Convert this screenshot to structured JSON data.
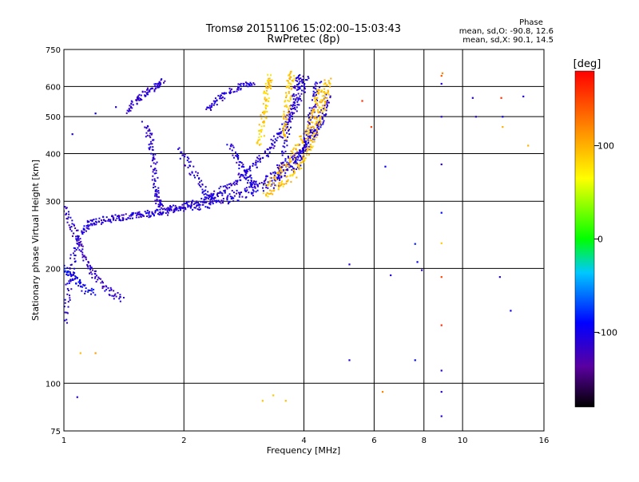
{
  "title_line1": "Tromsø 20151106 15:02:00–15:03:43",
  "title_line2": "RwPretec (8p)",
  "phase_box": {
    "heading": "Phase",
    "line_o": "mean, sd,O: -90.8, 12.6",
    "line_x": "mean, sd,X:  90.1, 14.5"
  },
  "colorbar": {
    "label": "[deg]",
    "min": -180,
    "max": 180,
    "tick_values": [
      100,
      0,
      -100
    ],
    "tick_labels": [
      "100",
      "0",
      "-100"
    ]
  },
  "chart_data": {
    "type": "scatter",
    "title": "Tromsø 20151106 15:02:00–15:03:43",
    "subtitle": "RwPretec (8p)",
    "xlabel": "Frequency [MHz]",
    "ylabel": "Stationary phase Virtual Height [km]",
    "x_scale": "log",
    "y_scale": "log",
    "xlim": [
      1,
      16
    ],
    "ylim": [
      75,
      750
    ],
    "x_ticks": [
      1,
      2,
      4,
      6,
      8,
      10,
      16
    ],
    "x_tick_labels": [
      "1",
      "2",
      "4",
      "6",
      "8",
      "10",
      "16"
    ],
    "y_ticks": [
      75,
      100,
      200,
      300,
      400,
      500,
      600,
      750
    ],
    "y_tick_labels": [
      "75",
      "100",
      "200",
      "300",
      "400",
      "500",
      "600",
      "750"
    ],
    "grid": true,
    "color_by": "phase [deg]",
    "traces": [
      {
        "color_phase": -108,
        "points": [
          [
            1.0,
            145
          ],
          [
            1.03,
            180
          ],
          [
            1.06,
            215
          ],
          [
            1.1,
            245
          ],
          [
            1.15,
            262
          ],
          [
            1.25,
            268
          ],
          [
            1.4,
            272
          ],
          [
            1.6,
            278
          ],
          [
            1.8,
            285
          ],
          [
            2.0,
            292
          ],
          [
            2.2,
            300
          ],
          [
            2.4,
            312
          ],
          [
            2.6,
            328
          ],
          [
            2.8,
            348
          ],
          [
            3.0,
            372
          ],
          [
            3.2,
            400
          ],
          [
            3.4,
            435
          ],
          [
            3.6,
            480
          ],
          [
            3.8,
            530
          ],
          [
            3.95,
            580
          ],
          [
            4.05,
            630
          ]
        ]
      },
      {
        "color_phase": -110,
        "points": [
          [
            1.2,
            265
          ],
          [
            1.5,
            274
          ],
          [
            1.8,
            283
          ],
          [
            2.1,
            293
          ],
          [
            2.5,
            306
          ],
          [
            2.9,
            322
          ],
          [
            3.2,
            340
          ],
          [
            3.5,
            365
          ],
          [
            3.8,
            395
          ],
          [
            4.05,
            430
          ],
          [
            4.3,
            470
          ],
          [
            4.5,
            520
          ],
          [
            4.6,
            570
          ]
        ]
      },
      {
        "color_phase": -106,
        "points": [
          [
            1.4,
            272
          ],
          [
            1.8,
            280
          ],
          [
            2.2,
            290
          ],
          [
            2.6,
            302
          ],
          [
            3.0,
            318
          ],
          [
            3.4,
            340
          ],
          [
            3.7,
            368
          ],
          [
            4.0,
            405
          ],
          [
            4.25,
            450
          ],
          [
            4.45,
            500
          ]
        ]
      },
      {
        "color_phase": -112,
        "points": [
          [
            1.45,
            520
          ],
          [
            1.52,
            555
          ],
          [
            1.6,
            580
          ],
          [
            1.7,
            600
          ],
          [
            1.78,
            620
          ]
        ]
      },
      {
        "color_phase": -110,
        "points": [
          [
            1.6,
            480
          ],
          [
            1.65,
            430
          ],
          [
            1.68,
            380
          ],
          [
            1.7,
            330
          ],
          [
            1.72,
            300
          ],
          [
            1.75,
            290
          ]
        ]
      },
      {
        "color_phase": -108,
        "points": [
          [
            1.95,
            410
          ],
          [
            2.1,
            360
          ],
          [
            2.25,
            320
          ],
          [
            2.4,
            300
          ]
        ]
      },
      {
        "color_phase": -110,
        "points": [
          [
            2.3,
            520
          ],
          [
            2.45,
            560
          ],
          [
            2.6,
            580
          ],
          [
            2.8,
            600
          ],
          [
            3.0,
            615
          ]
        ]
      },
      {
        "color_phase": -104,
        "points": [
          [
            2.6,
            420
          ],
          [
            2.75,
            380
          ],
          [
            2.9,
            345
          ],
          [
            3.0,
            330
          ]
        ]
      },
      {
        "color_phase": -108,
        "points": [
          [
            3.4,
            330
          ],
          [
            3.55,
            400
          ],
          [
            3.65,
            470
          ],
          [
            3.75,
            540
          ],
          [
            3.85,
            610
          ],
          [
            3.95,
            640
          ]
        ]
      },
      {
        "color_phase": -106,
        "points": [
          [
            3.8,
            360
          ],
          [
            4.0,
            420
          ],
          [
            4.15,
            490
          ],
          [
            4.25,
            560
          ],
          [
            4.35,
            620
          ]
        ]
      },
      {
        "color_phase": -115,
        "points": [
          [
            1.0,
            290
          ],
          [
            1.05,
            260
          ],
          [
            1.1,
            230
          ],
          [
            1.15,
            205
          ],
          [
            1.2,
            190
          ],
          [
            1.3,
            175
          ],
          [
            1.4,
            165
          ]
        ]
      },
      {
        "color_phase": -95,
        "points": [
          [
            1.0,
            200
          ],
          [
            1.05,
            190
          ],
          [
            1.1,
            180
          ],
          [
            1.2,
            170
          ]
        ]
      },
      {
        "color_phase": 92,
        "points": [
          [
            3.2,
            310
          ],
          [
            3.5,
            330
          ],
          [
            3.8,
            355
          ],
          [
            4.0,
            390
          ],
          [
            4.2,
            430
          ],
          [
            4.35,
            480
          ],
          [
            4.45,
            530
          ],
          [
            4.55,
            580
          ],
          [
            4.6,
            630
          ]
        ]
      },
      {
        "color_phase": 95,
        "points": [
          [
            3.25,
            330
          ],
          [
            3.5,
            360
          ],
          [
            3.75,
            395
          ],
          [
            4.0,
            440
          ],
          [
            4.2,
            490
          ],
          [
            4.3,
            540
          ],
          [
            4.4,
            600
          ]
        ]
      },
      {
        "color_phase": 88,
        "points": [
          [
            3.1,
            420
          ],
          [
            3.15,
            480
          ],
          [
            3.2,
            540
          ],
          [
            3.25,
            600
          ],
          [
            3.3,
            640
          ]
        ]
      },
      {
        "color_phase": 90,
        "points": [
          [
            3.55,
            440
          ],
          [
            3.6,
            500
          ],
          [
            3.65,
            560
          ],
          [
            3.7,
            620
          ],
          [
            3.75,
            650
          ]
        ]
      }
    ],
    "isolated_points": [
      [
        5.2,
        205,
        -110
      ],
      [
        5.2,
        115,
        -105
      ],
      [
        6.4,
        370,
        -90
      ],
      [
        6.6,
        192,
        -110
      ],
      [
        7.6,
        232,
        -85
      ],
      [
        7.6,
        115,
        -90
      ],
      [
        7.7,
        208,
        -92
      ],
      [
        7.9,
        198,
        -108
      ],
      [
        8.85,
        500,
        -110
      ],
      [
        8.85,
        375,
        -112
      ],
      [
        8.85,
        280,
        -88
      ],
      [
        8.85,
        233,
        90
      ],
      [
        8.85,
        190,
        150
      ],
      [
        8.85,
        142,
        160
      ],
      [
        8.85,
        108,
        -110
      ],
      [
        8.85,
        95,
        -112
      ],
      [
        8.85,
        82,
        -105
      ],
      [
        8.85,
        610,
        -108
      ],
      [
        8.85,
        640,
        140
      ],
      [
        8.9,
        650,
        120
      ],
      [
        10.6,
        560,
        -105
      ],
      [
        10.8,
        500,
        -108
      ],
      [
        12.5,
        560,
        160
      ],
      [
        12.6,
        500,
        -95
      ],
      [
        12.6,
        470,
        100
      ],
      [
        12.4,
        190,
        -110
      ],
      [
        13.2,
        155,
        -95
      ],
      [
        14.2,
        565,
        -110
      ],
      [
        14.6,
        420,
        100
      ],
      [
        3.15,
        90,
        92
      ],
      [
        3.35,
        93,
        90
      ],
      [
        3.6,
        90,
        95
      ],
      [
        6.3,
        95,
        120
      ],
      [
        5.6,
        550,
        160
      ],
      [
        5.9,
        470,
        150
      ],
      [
        1.2,
        510,
        -95
      ],
      [
        1.35,
        530,
        -110
      ],
      [
        1.05,
        450,
        -100
      ],
      [
        1.1,
        120,
        95
      ],
      [
        1.08,
        92,
        -110
      ],
      [
        1.2,
        120,
        110
      ]
    ]
  }
}
